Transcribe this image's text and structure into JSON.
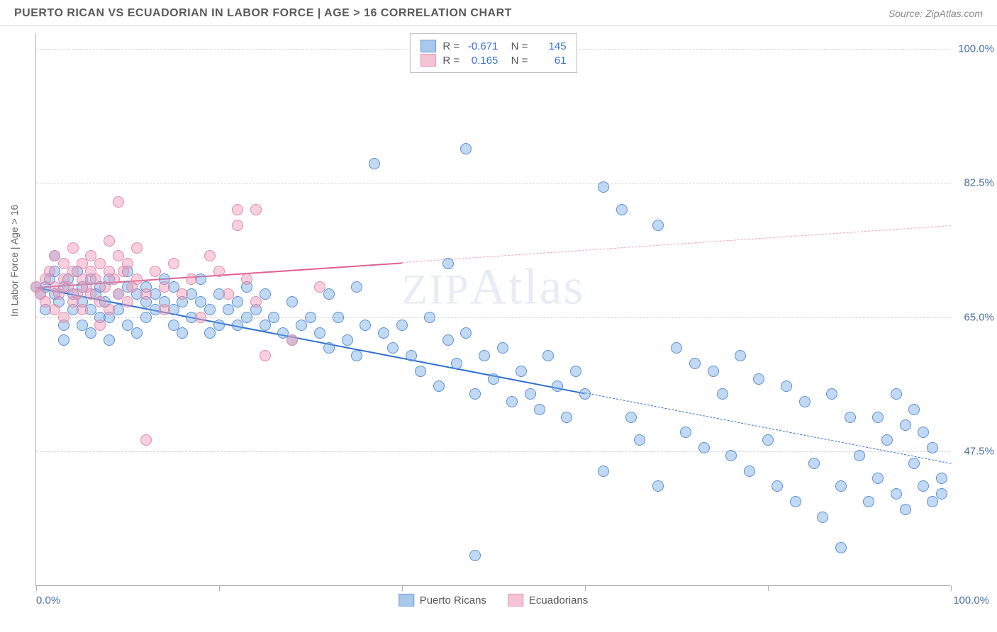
{
  "title": "PUERTO RICAN VS ECUADORIAN IN LABOR FORCE | AGE > 16 CORRELATION CHART",
  "source": "Source: ZipAtlas.com",
  "watermark": "ZIPAtlas",
  "chart": {
    "type": "scatter",
    "background_color": "#ffffff",
    "grid_color": "#d5d5d5",
    "border_color": "#b0b0b0",
    "yaxis_title": "In Labor Force | Age > 16",
    "xlim": [
      0,
      100
    ],
    "ylim": [
      30,
      102
    ],
    "yticks": [
      47.5,
      65.0,
      82.5,
      100.0
    ],
    "ytick_labels": [
      "47.5%",
      "65.0%",
      "82.5%",
      "100.0%"
    ],
    "xticks": [
      0,
      20,
      40,
      60,
      80,
      100
    ],
    "xaxis_label_left": "0.0%",
    "xaxis_label_right": "100.0%",
    "ytick_label_color": "#4a6fa5",
    "ytick_label_fontsize": 15,
    "axis_label_fontsize": 14,
    "marker_radius": 8,
    "marker_border_width": 1.2,
    "series": [
      {
        "name": "Puerto Ricans",
        "fill": "rgba(120,170,230,0.45)",
        "stroke": "#5a8fd0",
        "swatch_fill": "#a8c8ec",
        "swatch_stroke": "#6a9bd8",
        "R": "-0.671",
        "N": "145",
        "trend": {
          "x0": 0,
          "y0": 69,
          "x1": 100,
          "y1": 46,
          "solid_until": 60,
          "solid_color": "#2f6fd0",
          "dash_color": "#2f6fd0"
        },
        "points": [
          [
            0,
            69
          ],
          [
            0.5,
            68
          ],
          [
            1,
            69
          ],
          [
            1,
            66
          ],
          [
            1.5,
            70
          ],
          [
            2,
            68
          ],
          [
            2,
            71
          ],
          [
            2,
            73
          ],
          [
            2.5,
            67
          ],
          [
            3,
            69
          ],
          [
            3,
            64
          ],
          [
            3,
            62
          ],
          [
            3.5,
            70
          ],
          [
            4,
            68
          ],
          [
            4,
            66
          ],
          [
            4.5,
            71
          ],
          [
            5,
            67
          ],
          [
            5,
            69
          ],
          [
            5,
            64
          ],
          [
            6,
            70
          ],
          [
            6,
            66
          ],
          [
            6,
            63
          ],
          [
            6.5,
            68
          ],
          [
            7,
            65
          ],
          [
            7,
            69
          ],
          [
            7.5,
            67
          ],
          [
            8,
            70
          ],
          [
            8,
            65
          ],
          [
            8,
            62
          ],
          [
            9,
            68
          ],
          [
            9,
            66
          ],
          [
            10,
            69
          ],
          [
            10,
            71
          ],
          [
            10,
            64
          ],
          [
            11,
            68
          ],
          [
            11,
            63
          ],
          [
            12,
            67
          ],
          [
            12,
            69
          ],
          [
            12,
            65
          ],
          [
            13,
            66
          ],
          [
            13,
            68
          ],
          [
            14,
            67
          ],
          [
            14,
            70
          ],
          [
            15,
            66
          ],
          [
            15,
            64
          ],
          [
            15,
            69
          ],
          [
            16,
            67
          ],
          [
            16,
            63
          ],
          [
            17,
            68
          ],
          [
            17,
            65
          ],
          [
            18,
            67
          ],
          [
            18,
            70
          ],
          [
            19,
            66
          ],
          [
            19,
            63
          ],
          [
            20,
            68
          ],
          [
            20,
            64
          ],
          [
            21,
            66
          ],
          [
            22,
            67
          ],
          [
            22,
            64
          ],
          [
            23,
            65
          ],
          [
            23,
            69
          ],
          [
            24,
            66
          ],
          [
            25,
            64
          ],
          [
            25,
            68
          ],
          [
            26,
            65
          ],
          [
            27,
            63
          ],
          [
            28,
            67
          ],
          [
            28,
            62
          ],
          [
            29,
            64
          ],
          [
            30,
            65
          ],
          [
            31,
            63
          ],
          [
            32,
            68
          ],
          [
            32,
            61
          ],
          [
            33,
            65
          ],
          [
            34,
            62
          ],
          [
            35,
            69
          ],
          [
            35,
            60
          ],
          [
            36,
            64
          ],
          [
            37,
            85
          ],
          [
            38,
            63
          ],
          [
            39,
            61
          ],
          [
            40,
            64
          ],
          [
            41,
            60
          ],
          [
            42,
            58
          ],
          [
            43,
            65
          ],
          [
            44,
            56
          ],
          [
            45,
            62
          ],
          [
            45,
            72
          ],
          [
            46,
            59
          ],
          [
            47,
            63
          ],
          [
            47,
            87
          ],
          [
            48,
            55
          ],
          [
            48,
            34
          ],
          [
            49,
            60
          ],
          [
            50,
            57
          ],
          [
            51,
            61
          ],
          [
            52,
            54
          ],
          [
            53,
            58
          ],
          [
            54,
            55
          ],
          [
            55,
            53
          ],
          [
            56,
            60
          ],
          [
            57,
            56
          ],
          [
            58,
            52
          ],
          [
            59,
            58
          ],
          [
            60,
            55
          ],
          [
            62,
            82
          ],
          [
            62,
            45
          ],
          [
            64,
            79
          ],
          [
            65,
            52
          ],
          [
            66,
            49
          ],
          [
            68,
            77
          ],
          [
            68,
            43
          ],
          [
            70,
            61
          ],
          [
            71,
            50
          ],
          [
            72,
            59
          ],
          [
            73,
            48
          ],
          [
            74,
            58
          ],
          [
            75,
            55
          ],
          [
            76,
            47
          ],
          [
            77,
            60
          ],
          [
            78,
            45
          ],
          [
            79,
            57
          ],
          [
            80,
            49
          ],
          [
            81,
            43
          ],
          [
            82,
            56
          ],
          [
            83,
            41
          ],
          [
            84,
            54
          ],
          [
            85,
            46
          ],
          [
            86,
            39
          ],
          [
            87,
            55
          ],
          [
            88,
            43
          ],
          [
            88,
            35
          ],
          [
            89,
            52
          ],
          [
            90,
            47
          ],
          [
            91,
            41
          ],
          [
            92,
            52
          ],
          [
            92,
            44
          ],
          [
            93,
            49
          ],
          [
            94,
            42
          ],
          [
            94,
            55
          ],
          [
            95,
            51
          ],
          [
            95,
            40
          ],
          [
            96,
            46
          ],
          [
            96,
            53
          ],
          [
            97,
            43
          ],
          [
            97,
            50
          ],
          [
            98,
            41
          ],
          [
            98,
            48
          ],
          [
            99,
            44
          ],
          [
            99,
            42
          ]
        ]
      },
      {
        "name": "Ecuadorians",
        "fill": "rgba(240,150,180,0.45)",
        "stroke": "#e08aa8",
        "swatch_fill": "#f5c4d4",
        "swatch_stroke": "#e896b0",
        "R": "0.165",
        "N": "61",
        "trend": {
          "x0": 0,
          "y0": 69,
          "x1": 100,
          "y1": 77,
          "solid_until": 40,
          "solid_color": "#e06090",
          "dash_color": "#f0a0b8"
        },
        "points": [
          [
            0,
            69
          ],
          [
            0.5,
            68
          ],
          [
            1,
            70
          ],
          [
            1,
            67
          ],
          [
            1.5,
            71
          ],
          [
            2,
            69
          ],
          [
            2,
            66
          ],
          [
            2,
            73
          ],
          [
            2.5,
            68
          ],
          [
            3,
            70
          ],
          [
            3,
            72
          ],
          [
            3,
            65
          ],
          [
            3.5,
            69
          ],
          [
            4,
            71
          ],
          [
            4,
            67
          ],
          [
            4,
            74
          ],
          [
            4.5,
            68
          ],
          [
            5,
            70
          ],
          [
            5,
            72
          ],
          [
            5,
            66
          ],
          [
            5.5,
            69
          ],
          [
            6,
            73
          ],
          [
            6,
            68
          ],
          [
            6,
            71
          ],
          [
            6.5,
            70
          ],
          [
            7,
            67
          ],
          [
            7,
            72
          ],
          [
            7,
            64
          ],
          [
            7.5,
            69
          ],
          [
            8,
            71
          ],
          [
            8,
            75
          ],
          [
            8,
            66
          ],
          [
            8.5,
            70
          ],
          [
            9,
            73
          ],
          [
            9,
            68
          ],
          [
            9,
            80
          ],
          [
            9.5,
            71
          ],
          [
            10,
            72
          ],
          [
            10,
            67
          ],
          [
            10.5,
            69
          ],
          [
            11,
            70
          ],
          [
            11,
            74
          ],
          [
            12,
            68
          ],
          [
            12,
            49
          ],
          [
            13,
            71
          ],
          [
            14,
            66
          ],
          [
            14,
            69
          ],
          [
            15,
            72
          ],
          [
            16,
            68
          ],
          [
            17,
            70
          ],
          [
            18,
            65
          ],
          [
            19,
            73
          ],
          [
            20,
            71
          ],
          [
            21,
            68
          ],
          [
            22,
            77
          ],
          [
            22,
            79
          ],
          [
            23,
            70
          ],
          [
            24,
            67
          ],
          [
            24,
            79
          ],
          [
            25,
            60
          ],
          [
            28,
            62
          ],
          [
            31,
            69
          ]
        ]
      }
    ],
    "legend_bottom": [
      {
        "label": "Puerto Ricans",
        "series": 0
      },
      {
        "label": "Ecuadorians",
        "series": 1
      }
    ]
  }
}
